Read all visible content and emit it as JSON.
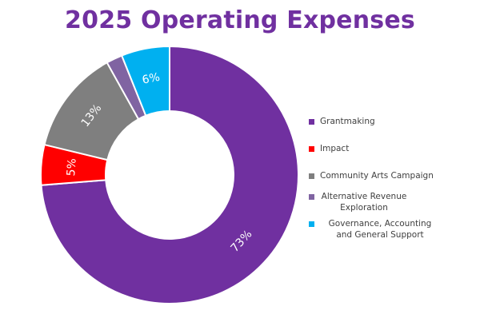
{
  "chart_data": {
    "type": "pie",
    "title": "2025 Operating Expenses",
    "donut": true,
    "categories": [
      "Grantmaking",
      "Impact",
      "Community Arts Campaign",
      "Alternative Revenue Exploration",
      "Governance, Accounting and General Support"
    ],
    "values": [
      73,
      5,
      13,
      2,
      6
    ],
    "data_labels": [
      "73%",
      "5%",
      "13%",
      "",
      "6%"
    ],
    "colors": [
      "#7030a0",
      "#ff0000",
      "#7f7f7f",
      "#8064a2",
      "#00b0f0"
    ],
    "legend_position": "right"
  }
}
